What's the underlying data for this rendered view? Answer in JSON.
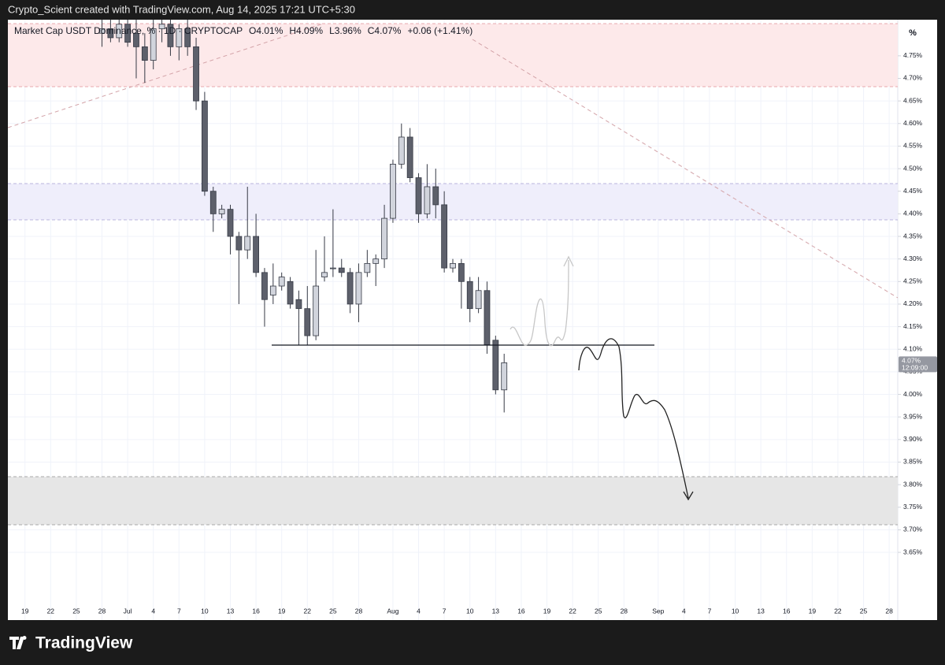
{
  "header": "Crypto_Scient created with TradingView.com, Aug 14, 2025 17:21 UTC+5:30",
  "brand": "TradingView",
  "chart_data": {
    "type": "candlestick",
    "title": "Market Cap USDT Dominance, % · 1D · CRYPTOCAP",
    "ohlc_legend": [
      "O4.01%",
      "H4.09%",
      "L3.96%",
      "C4.07%",
      "+0.06 (+1.41%)"
    ],
    "unit_label": "%",
    "last_price_label": "4.07%",
    "countdown": "12:09:00",
    "up_color": "#d1d4dc",
    "down_color": "#5d606b",
    "border_color": "#363a45",
    "grid": true,
    "x": [
      "Jun 28",
      "Jun 29",
      "Jun 30",
      "Jul 1",
      "Jul 2",
      "Jul 3",
      "Jul 4",
      "Jul 5",
      "Jul 6",
      "Jul 7",
      "Jul 8",
      "Jul 9",
      "Jul 10",
      "Jul 11",
      "Jul 12",
      "Jul 13",
      "Jul 14",
      "Jul 15",
      "Jul 16",
      "Jul 17",
      "Jul 18",
      "Jul 19",
      "Jul 20",
      "Jul 21",
      "Jul 22",
      "Jul 23",
      "Jul 24",
      "Jul 25",
      "Jul 26",
      "Jul 27",
      "Jul 28",
      "Jul 29",
      "Jul 30",
      "Jul 31",
      "Aug 1",
      "Aug 2",
      "Aug 3",
      "Aug 4",
      "Aug 5",
      "Aug 6",
      "Aug 7",
      "Aug 8",
      "Aug 9",
      "Aug 10",
      "Aug 11",
      "Aug 12",
      "Aug 13",
      "Aug 14"
    ],
    "open": [
      4.8,
      4.81,
      4.79,
      4.82,
      4.8,
      4.77,
      4.74,
      4.81,
      4.82,
      4.77,
      4.81,
      4.77,
      4.65,
      4.45,
      4.4,
      4.41,
      4.35,
      4.32,
      4.35,
      4.27,
      4.22,
      4.24,
      4.25,
      4.21,
      4.19,
      4.13,
      4.26,
      4.28,
      4.28,
      4.27,
      4.2,
      4.27,
      4.29,
      4.3,
      4.39,
      4.51,
      4.57,
      4.48,
      4.4,
      4.46,
      4.42,
      4.28,
      4.29,
      4.25,
      4.19,
      4.23,
      4.12,
      4.01
    ],
    "high": [
      4.83,
      4.83,
      4.83,
      4.83,
      4.83,
      4.8,
      4.83,
      4.83,
      4.83,
      4.82,
      4.83,
      4.79,
      4.67,
      4.46,
      4.42,
      4.42,
      4.36,
      4.46,
      4.4,
      4.28,
      4.29,
      4.27,
      4.26,
      4.23,
      4.24,
      4.32,
      4.35,
      4.41,
      4.3,
      4.28,
      4.29,
      4.32,
      4.31,
      4.42,
      4.52,
      4.6,
      4.59,
      4.49,
      4.51,
      4.5,
      4.45,
      4.3,
      4.3,
      4.26,
      4.26,
      4.25,
      4.13,
      4.09
    ],
    "low": [
      4.77,
      4.78,
      4.78,
      4.77,
      4.7,
      4.69,
      4.72,
      4.78,
      4.75,
      4.74,
      4.75,
      4.63,
      4.44,
      4.36,
      4.39,
      4.31,
      4.2,
      4.3,
      4.26,
      4.15,
      4.2,
      4.23,
      4.19,
      4.11,
      4.11,
      4.12,
      4.25,
      4.26,
      4.26,
      4.18,
      4.16,
      4.26,
      4.24,
      4.28,
      4.38,
      4.5,
      4.47,
      4.38,
      4.39,
      4.39,
      4.27,
      4.27,
      4.19,
      4.16,
      4.18,
      4.09,
      4.0,
      3.96
    ],
    "close": [
      4.81,
      4.79,
      4.82,
      4.78,
      4.77,
      4.74,
      4.81,
      4.82,
      4.77,
      4.81,
      4.77,
      4.65,
      4.45,
      4.4,
      4.41,
      4.35,
      4.32,
      4.35,
      4.27,
      4.21,
      4.24,
      4.26,
      4.2,
      4.19,
      4.13,
      4.24,
      4.27,
      4.28,
      4.27,
      4.2,
      4.27,
      4.29,
      4.3,
      4.39,
      4.51,
      4.57,
      4.48,
      4.4,
      4.46,
      4.42,
      4.28,
      4.29,
      4.25,
      4.19,
      4.23,
      4.11,
      4.01,
      4.07
    ],
    "xlim": [
      "Jun 17",
      "Sep 29"
    ],
    "xticks": [
      {
        "value": "Jun 19",
        "label": "19"
      },
      {
        "value": "Jun 22",
        "label": "22"
      },
      {
        "value": "Jun 25",
        "label": "25"
      },
      {
        "value": "Jun 28",
        "label": "28"
      },
      {
        "value": "Jul 1",
        "label": "Jul"
      },
      {
        "value": "Jul 4",
        "label": "4"
      },
      {
        "value": "Jul 7",
        "label": "7"
      },
      {
        "value": "Jul 10",
        "label": "10"
      },
      {
        "value": "Jul 13",
        "label": "13"
      },
      {
        "value": "Jul 16",
        "label": "16"
      },
      {
        "value": "Jul 19",
        "label": "19"
      },
      {
        "value": "Jul 22",
        "label": "22"
      },
      {
        "value": "Jul 25",
        "label": "25"
      },
      {
        "value": "Jul 28",
        "label": "28"
      },
      {
        "value": "Aug 1",
        "label": "Aug"
      },
      {
        "value": "Aug 4",
        "label": "4"
      },
      {
        "value": "Aug 7",
        "label": "7"
      },
      {
        "value": "Aug 10",
        "label": "10"
      },
      {
        "value": "Aug 13",
        "label": "13"
      },
      {
        "value": "Aug 16",
        "label": "16"
      },
      {
        "value": "Aug 19",
        "label": "19"
      },
      {
        "value": "Aug 22",
        "label": "22"
      },
      {
        "value": "Aug 25",
        "label": "25"
      },
      {
        "value": "Aug 28",
        "label": "28"
      },
      {
        "value": "Sep 1",
        "label": "Sep"
      },
      {
        "value": "Sep 4",
        "label": "4"
      },
      {
        "value": "Sep 7",
        "label": "7"
      },
      {
        "value": "Sep 10",
        "label": "10"
      },
      {
        "value": "Sep 13",
        "label": "13"
      },
      {
        "value": "Sep 16",
        "label": "16"
      },
      {
        "value": "Sep 19",
        "label": "19"
      },
      {
        "value": "Sep 22",
        "label": "22"
      },
      {
        "value": "Sep 25",
        "label": "25"
      },
      {
        "value": "Sep 28",
        "label": "28"
      }
    ],
    "ylim": [
      3.5,
      4.83
    ],
    "yticks": [
      {
        "value": 4.75,
        "label": "4.75%"
      },
      {
        "value": 4.7,
        "label": "4.70%"
      },
      {
        "value": 4.65,
        "label": "4.65%"
      },
      {
        "value": 4.6,
        "label": "4.60%"
      },
      {
        "value": 4.55,
        "label": "4.55%"
      },
      {
        "value": 4.5,
        "label": "4.50%"
      },
      {
        "value": 4.45,
        "label": "4.45%"
      },
      {
        "value": 4.4,
        "label": "4.40%"
      },
      {
        "value": 4.35,
        "label": "4.35%"
      },
      {
        "value": 4.3,
        "label": "4.30%"
      },
      {
        "value": 4.25,
        "label": "4.25%"
      },
      {
        "value": 4.2,
        "label": "4.20%"
      },
      {
        "value": 4.15,
        "label": "4.15%"
      },
      {
        "value": 4.1,
        "label": "4.10%"
      },
      {
        "value": 4.05,
        "label": "4.05%"
      },
      {
        "value": 4.0,
        "label": "4.00%"
      },
      {
        "value": 3.95,
        "label": "3.95%"
      },
      {
        "value": 3.9,
        "label": "3.90%"
      },
      {
        "value": 3.85,
        "label": "3.85%"
      },
      {
        "value": 3.8,
        "label": "3.80%"
      },
      {
        "value": 3.75,
        "label": "3.75%"
      },
      {
        "value": 3.7,
        "label": "3.70%"
      },
      {
        "value": 3.65,
        "label": "3.65%"
      }
    ]
  }
}
